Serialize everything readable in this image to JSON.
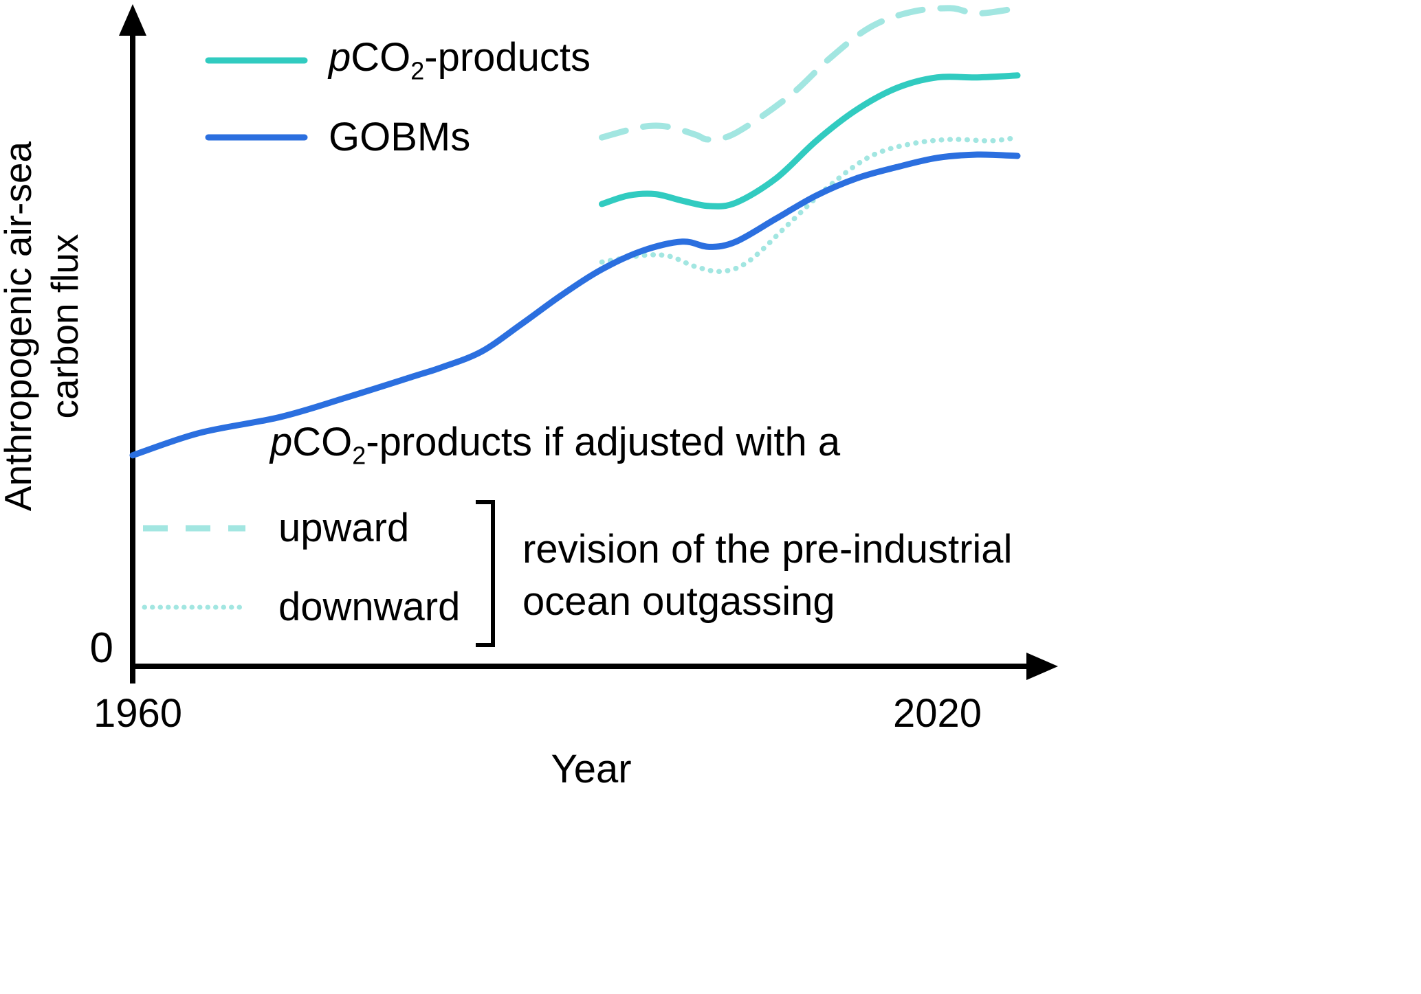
{
  "colors": {
    "blue": "#2b6fdf",
    "teal": "#31cbc0",
    "light_teal": "#a2e6e1",
    "axis": "#000000"
  },
  "axes": {
    "x_label": "Year",
    "x_tick_left": "1960",
    "x_tick_right": "2020",
    "y_tick_zero": "0",
    "y_label_line1": "Anthropogenic air-sea",
    "y_label_line2": "carbon flux"
  },
  "legend": {
    "pco2": {
      "p": "p",
      "co": "CO",
      "sub": "2",
      "rest": "-products"
    },
    "gobms": "GOBMs"
  },
  "annotation": {
    "p": "p",
    "co": "CO",
    "sub": "2",
    "rest": "-products if adjusted with a"
  },
  "adjust_legend": {
    "upward": "upward",
    "downward": "downward",
    "revision_line1": "revision of the pre-industrial",
    "revision_line2": "ocean outgassing"
  },
  "chart_data": {
    "type": "line",
    "title": "",
    "xlabel": "Year",
    "ylabel": "Anthropogenic air-sea carbon flux",
    "x_range": [
      1960,
      2027
    ],
    "y_range": [
      0,
      10
    ],
    "x_ticks": [
      1960,
      2020
    ],
    "y_ticks": [
      0
    ],
    "y_axis_note": "y axis unlabeled except 0; values are relative units estimated from curve positions",
    "grid": false,
    "legend_position": "top-left and lower-center",
    "series": [
      {
        "id": "upward_adjusted",
        "label": "pCO2-products if adjusted with an upward revision of the pre-industrial ocean outgassing",
        "color": "light_teal",
        "dash": "dashed",
        "x": [
          1995,
          1998,
          2000,
          2002,
          2003,
          2005,
          2009,
          2012,
          2015,
          2018,
          2021,
          2023,
          2026
        ],
        "y": [
          8.02,
          8.18,
          8.18,
          8.06,
          7.99,
          8.09,
          8.65,
          9.22,
          9.69,
          9.92,
          9.98,
          9.9,
          9.98
        ]
      },
      {
        "id": "downward_adjusted",
        "label": "pCO2-products if adjusted with a downward revision of the pre-industrial ocean outgassing",
        "color": "light_teal",
        "dash": "dotted",
        "x": [
          1995,
          1998,
          2000,
          2002,
          2004,
          2006,
          2009,
          2012,
          2015,
          2018,
          2021,
          2024,
          2026
        ],
        "y": [
          6.13,
          6.23,
          6.22,
          6.06,
          5.99,
          6.15,
          6.72,
          7.29,
          7.73,
          7.92,
          7.99,
          7.97,
          8.02
        ]
      },
      {
        "id": "gobms",
        "label": "GOBMs",
        "color": "blue",
        "dash": "solid",
        "x": [
          1960,
          1965,
          1971,
          1976,
          1981,
          1983,
          1986,
          1989,
          1992,
          1995,
          1998,
          2001,
          2003,
          2005,
          2008,
          2011,
          2014,
          2017,
          2020,
          2023,
          2026
        ],
        "y": [
          3.2,
          3.54,
          3.78,
          4.08,
          4.4,
          4.53,
          4.77,
          5.19,
          5.63,
          6.02,
          6.3,
          6.44,
          6.36,
          6.44,
          6.79,
          7.14,
          7.4,
          7.57,
          7.71,
          7.76,
          7.74
        ]
      },
      {
        "id": "pco2_products",
        "label": "pCO2-products",
        "color": "teal",
        "dash": "solid",
        "x": [
          1995,
          1997,
          1999,
          2001,
          2003,
          2005,
          2008,
          2011,
          2014,
          2017,
          2020,
          2023,
          2026
        ],
        "y": [
          7.01,
          7.14,
          7.16,
          7.06,
          6.98,
          7.03,
          7.4,
          7.97,
          8.44,
          8.77,
          8.93,
          8.93,
          8.96
        ]
      }
    ]
  }
}
